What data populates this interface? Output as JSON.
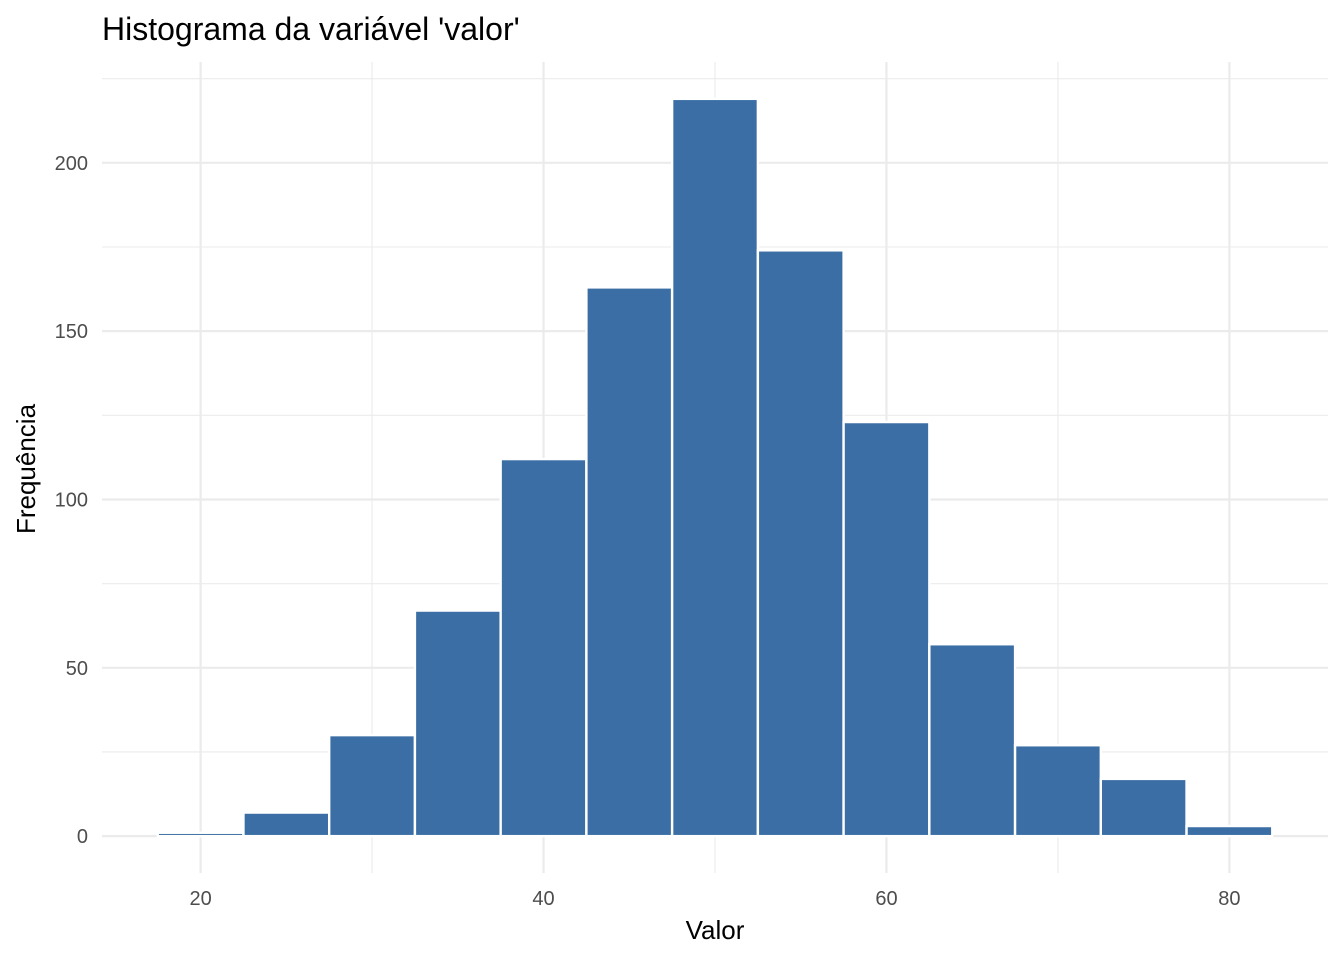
{
  "chart_data": {
    "type": "bar",
    "title": "Histograma da variável 'valor'",
    "xlabel": "Valor",
    "ylabel": "Frequência",
    "bins": [
      {
        "start": 17.5,
        "end": 22.5,
        "count": 1
      },
      {
        "start": 22.5,
        "end": 27.5,
        "count": 7
      },
      {
        "start": 27.5,
        "end": 32.5,
        "count": 30
      },
      {
        "start": 32.5,
        "end": 37.5,
        "count": 67
      },
      {
        "start": 37.5,
        "end": 42.5,
        "count": 112
      },
      {
        "start": 42.5,
        "end": 47.5,
        "count": 163
      },
      {
        "start": 47.5,
        "end": 52.5,
        "count": 219
      },
      {
        "start": 52.5,
        "end": 57.5,
        "count": 174
      },
      {
        "start": 57.5,
        "end": 62.5,
        "count": 123
      },
      {
        "start": 62.5,
        "end": 67.5,
        "count": 57
      },
      {
        "start": 67.5,
        "end": 72.5,
        "count": 27
      },
      {
        "start": 72.5,
        "end": 77.5,
        "count": 17
      },
      {
        "start": 77.5,
        "end": 82.5,
        "count": 3
      }
    ],
    "xlim": [
      14.25,
      85.75
    ],
    "ylim": [
      -10.95,
      229.95
    ],
    "x_ticks": [
      20,
      40,
      60,
      80
    ],
    "y_ticks": [
      0,
      50,
      100,
      150,
      200
    ],
    "x_minor_ticks": [
      30,
      50,
      70
    ],
    "y_minor_ticks": [
      25,
      75,
      125,
      175,
      225
    ],
    "grid": true,
    "bar_color": "#3a6ea5",
    "bar_edge_color": "#ffffff"
  }
}
